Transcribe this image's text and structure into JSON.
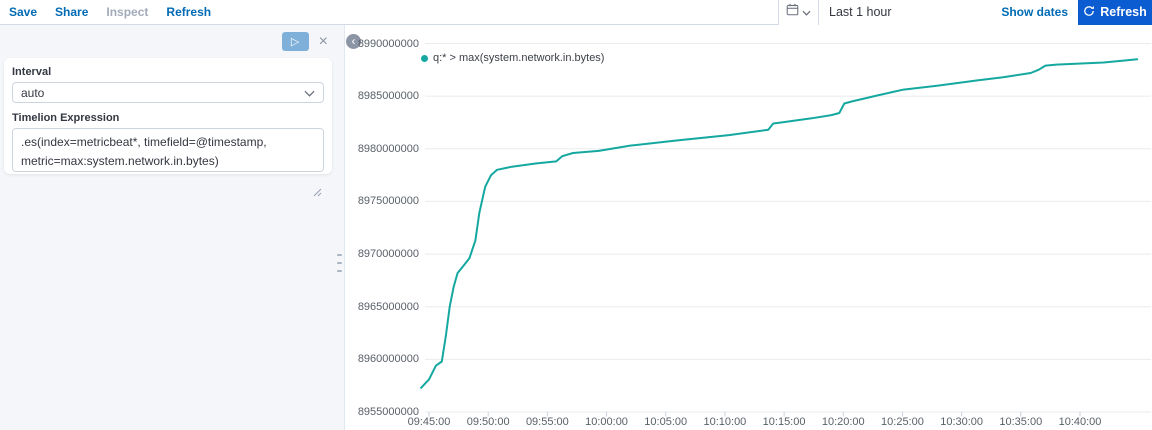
{
  "toolbar": {
    "save": "Save",
    "share": "Share",
    "inspect": "Inspect",
    "refresh": "Refresh"
  },
  "timepicker": {
    "duration": "Last 1 hour",
    "show_dates": "Show dates",
    "refresh_label": "Refresh"
  },
  "editor": {
    "interval_label": "Interval",
    "interval_value": "auto",
    "expression_label": "Timelion Expression",
    "expression_value": ".es(index=metricbeat*, timefield=@timestamp, metric=max:system.network.in.bytes)"
  },
  "icons": {
    "play": "▷",
    "close": "×",
    "collapse": "‹"
  },
  "colors": {
    "accent": "#006bb4",
    "primary_button": "#0b5cd0",
    "series": "#14a8a0",
    "grid": "#e9ebef",
    "tick": "#c9d1dc",
    "axis_text": "#5a6069"
  },
  "chart_data": {
    "type": "line",
    "legend": "q:* > max(system.network.in.bytes)",
    "series_color": "#14a8a0",
    "grid": true,
    "legend_position": "top-left",
    "ylabel": "",
    "xlabel": "",
    "ylim": [
      8955000000,
      8990000000
    ],
    "y_ticks": [
      "8990000000",
      "8985000000",
      "8980000000",
      "8975000000",
      "8970000000",
      "8965000000",
      "8960000000",
      "8955000000"
    ],
    "x_ticks": [
      "09:45:00",
      "09:50:00",
      "09:55:00",
      "10:00:00",
      "10:05:00",
      "10:10:00",
      "10:15:00",
      "10:20:00",
      "10:25:00",
      "10:30:00",
      "10:35:00",
      "10:40:00"
    ],
    "points": [
      [
        "09:44:20",
        8957300000
      ],
      [
        "09:45:00",
        8958100000
      ],
      [
        "09:45:35",
        8959400000
      ],
      [
        "09:46:05",
        8959800000
      ],
      [
        "09:46:25",
        8962200000
      ],
      [
        "09:46:45",
        8965000000
      ],
      [
        "09:47:05",
        8966900000
      ],
      [
        "09:47:25",
        8968200000
      ],
      [
        "09:47:55",
        8968900000
      ],
      [
        "09:48:25",
        8969600000
      ],
      [
        "09:48:55",
        8971300000
      ],
      [
        "09:49:15",
        8973900000
      ],
      [
        "09:49:45",
        8976400000
      ],
      [
        "09:50:15",
        8977500000
      ],
      [
        "09:50:45",
        8978000000
      ],
      [
        "09:52:00",
        8978300000
      ],
      [
        "09:54:00",
        8978600000
      ],
      [
        "09:55:45",
        8978800000
      ],
      [
        "09:56:15",
        8979300000
      ],
      [
        "09:57:10",
        8979600000
      ],
      [
        "09:59:20",
        8979800000
      ],
      [
        "10:02:00",
        8980300000
      ],
      [
        "10:06:00",
        8980800000
      ],
      [
        "10:10:20",
        8981300000
      ],
      [
        "10:13:40",
        8981800000
      ],
      [
        "10:14:05",
        8982400000
      ],
      [
        "10:14:45",
        8982500000
      ],
      [
        "10:17:20",
        8982900000
      ],
      [
        "10:19:00",
        8983200000
      ],
      [
        "10:19:40",
        8983400000
      ],
      [
        "10:20:05",
        8984300000
      ],
      [
        "10:20:45",
        8984500000
      ],
      [
        "10:23:00",
        8985100000
      ],
      [
        "10:25:00",
        8985600000
      ],
      [
        "10:28:00",
        8986000000
      ],
      [
        "10:31:20",
        8986500000
      ],
      [
        "10:33:30",
        8986800000
      ],
      [
        "10:35:50",
        8987200000
      ],
      [
        "10:36:30",
        8987500000
      ],
      [
        "10:37:05",
        8987900000
      ],
      [
        "10:38:00",
        8988000000
      ],
      [
        "10:42:00",
        8988200000
      ],
      [
        "10:44:00",
        8988400000
      ],
      [
        "10:44:50",
        8988500000
      ]
    ]
  }
}
